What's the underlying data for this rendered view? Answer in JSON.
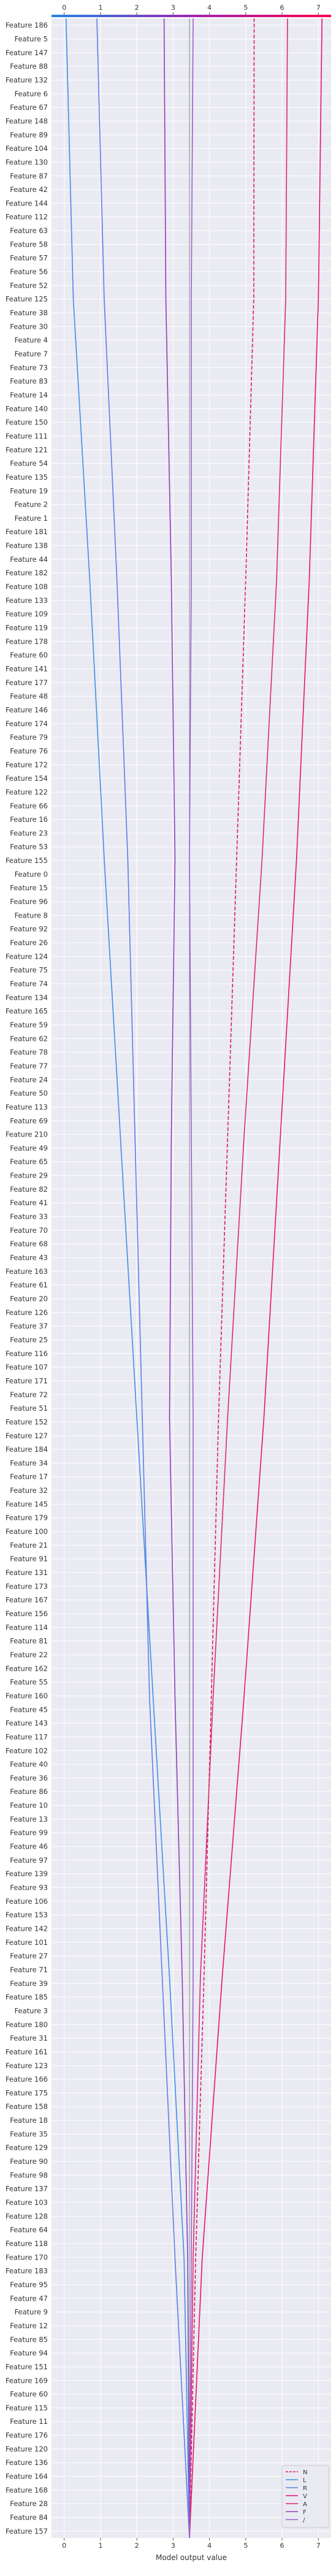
{
  "chart_data": {
    "type": "line",
    "subtype": "shap-decision-plot",
    "title": "",
    "xlabel": "Model output value",
    "xlim": [
      -0.35,
      7.35
    ],
    "x_ticks": [
      0,
      1,
      2,
      3,
      4,
      5,
      6,
      7
    ],
    "base_value": 3.45,
    "grid": true,
    "legend_position": "bottom-right",
    "features": [
      "Feature 186",
      "Feature 5",
      "Feature 147",
      "Feature 88",
      "Feature 132",
      "Feature 6",
      "Feature 67",
      "Feature 148",
      "Feature 89",
      "Feature 104",
      "Feature 130",
      "Feature 87",
      "Feature 42",
      "Feature 144",
      "Feature 112",
      "Feature 63",
      "Feature 58",
      "Feature 57",
      "Feature 56",
      "Feature 52",
      "Feature 125",
      "Feature 38",
      "Feature 30",
      "Feature 4",
      "Feature 7",
      "Feature 73",
      "Feature 83",
      "Feature 14",
      "Feature 140",
      "Feature 150",
      "Feature 111",
      "Feature 121",
      "Feature 54",
      "Feature 135",
      "Feature 19",
      "Feature 2",
      "Feature 1",
      "Feature 181",
      "Feature 138",
      "Feature 44",
      "Feature 182",
      "Feature 108",
      "Feature 133",
      "Feature 109",
      "Feature 119",
      "Feature 178",
      "Feature 60",
      "Feature 141",
      "Feature 177",
      "Feature 48",
      "Feature 146",
      "Feature 174",
      "Feature 79",
      "Feature 76",
      "Feature 172",
      "Feature 154",
      "Feature 122",
      "Feature 66",
      "Feature 16",
      "Feature 23",
      "Feature 53",
      "Feature 155",
      "Feature 0",
      "Feature 15",
      "Feature 96",
      "Feature 8",
      "Feature 92",
      "Feature 26",
      "Feature 124",
      "Feature 75",
      "Feature 74",
      "Feature 134",
      "Feature 165",
      "Feature 59",
      "Feature 62",
      "Feature 78",
      "Feature 77",
      "Feature 24",
      "Feature 50",
      "Feature 113",
      "Feature 69",
      "Feature 210",
      "Feature 49",
      "Feature 65",
      "Feature 29",
      "Feature 82",
      "Feature 41",
      "Feature 33",
      "Feature 70",
      "Feature 68",
      "Feature 43",
      "Feature 163",
      "Feature 61",
      "Feature 20",
      "Feature 126",
      "Feature 37",
      "Feature 25",
      "Feature 116",
      "Feature 107",
      "Feature 171",
      "Feature 72",
      "Feature 51",
      "Feature 152",
      "Feature 127",
      "Feature 184",
      "Feature 34",
      "Feature 17",
      "Feature 32",
      "Feature 145",
      "Feature 179",
      "Feature 100",
      "Feature 21",
      "Feature 91",
      "Feature 131",
      "Feature 173",
      "Feature 167",
      "Feature 156",
      "Feature 114",
      "Feature 81",
      "Feature 22",
      "Feature 162",
      "Feature 55",
      "Feature 160",
      "Feature 45",
      "Feature 143",
      "Feature 117",
      "Feature 102",
      "Feature 40",
      "Feature 36",
      "Feature 86",
      "Feature 10",
      "Feature 13",
      "Feature 99",
      "Feature 46",
      "Feature 97",
      "Feature 139",
      "Feature 93",
      "Feature 106",
      "Feature 153",
      "Feature 142",
      "Feature 101",
      "Feature 27",
      "Feature 71",
      "Feature 39",
      "Feature 185",
      "Feature 3",
      "Feature 180",
      "Feature 31",
      "Feature 161",
      "Feature 123",
      "Feature 166",
      "Feature 175",
      "Feature 158",
      "Feature 18",
      "Feature 35",
      "Feature 129",
      "Feature 90",
      "Feature 98",
      "Feature 137",
      "Feature 103",
      "Feature 128",
      "Feature 64",
      "Feature 118",
      "Feature 170",
      "Feature 183",
      "Feature 95",
      "Feature 47",
      "Feature 9",
      "Feature 12",
      "Feature 85",
      "Feature 94",
      "Feature 151",
      "Feature 169",
      "Feature 60",
      "Feature 115",
      "Feature 11",
      "Feature 176",
      "Feature 120",
      "Feature 136",
      "Feature 164",
      "Feature 168",
      "Feature 28",
      "Feature 84",
      "Feature 157"
    ],
    "series": [
      {
        "name": "N",
        "color": "#d81b60",
        "dashed": true,
        "x": [
          3.45,
          3.62,
          3.85,
          4.05,
          4.25,
          4.5,
          4.75,
          5.0,
          5.22,
          5.23
        ]
      },
      {
        "name": "L",
        "color": "#3f8ee6",
        "dashed": false,
        "x": [
          3.45,
          3.3,
          2.9,
          2.45,
          2.0,
          1.55,
          1.1,
          0.7,
          0.25,
          0.05
        ]
      },
      {
        "name": "R",
        "color": "#5b7fe6",
        "dashed": false,
        "x": [
          3.45,
          3.05,
          2.7,
          2.35,
          2.15,
          1.95,
          1.75,
          1.45,
          1.1,
          0.9
        ]
      },
      {
        "name": "V",
        "color": "#e8136b",
        "dashed": false,
        "x": [
          3.45,
          3.8,
          4.35,
          4.95,
          5.5,
          5.95,
          6.4,
          6.75,
          7.0,
          7.1
        ]
      },
      {
        "name": "A",
        "color": "#d9297a",
        "dashed": false,
        "x": [
          3.45,
          3.55,
          3.75,
          4.1,
          4.5,
          4.95,
          5.45,
          5.85,
          6.1,
          6.15
        ]
      },
      {
        "name": "F",
        "color": "#8e3fb8",
        "dashed": false,
        "x": [
          3.45,
          3.4,
          3.25,
          3.05,
          2.9,
          2.95,
          3.05,
          2.95,
          2.8,
          2.75
        ]
      },
      {
        "name": "/",
        "color": "#9b5fd0",
        "dashed": false,
        "x": [
          3.45,
          3.5,
          3.55,
          3.55,
          3.55,
          3.5,
          3.45,
          3.5,
          3.5,
          3.55
        ]
      }
    ]
  }
}
